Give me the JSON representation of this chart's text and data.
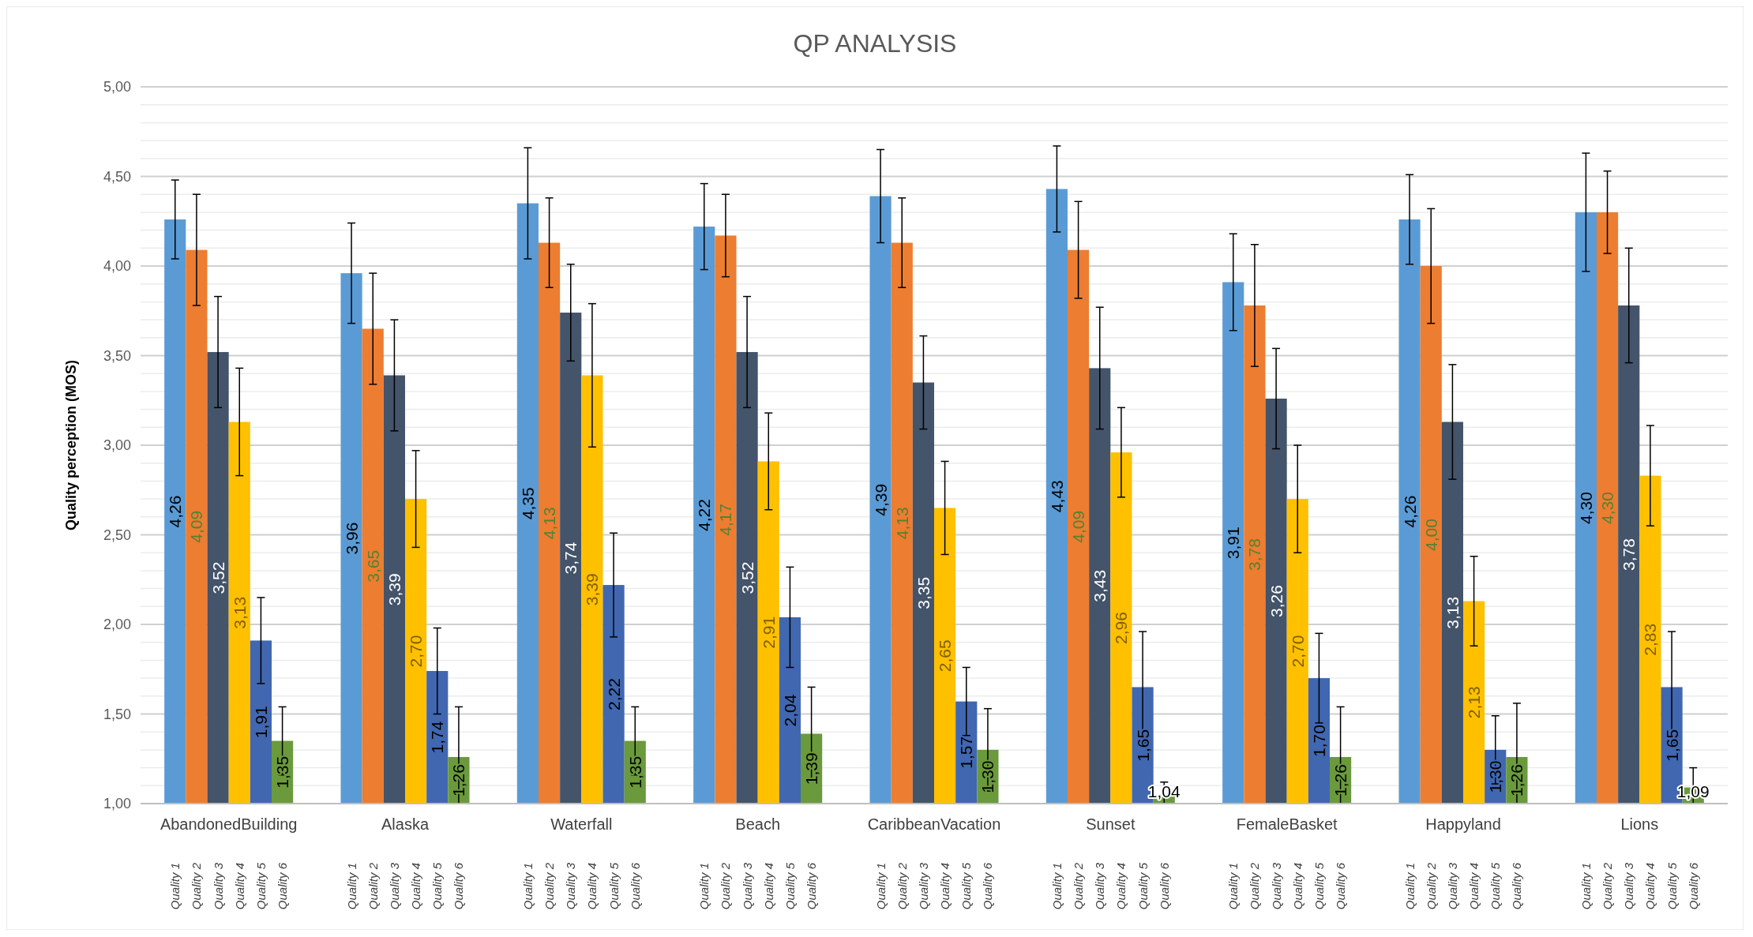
{
  "chart_data": {
    "type": "bar",
    "title": "QP ANALYSIS",
    "ylabel": "Quality perception (MOS)",
    "categories": [
      "AbandonedBuilding",
      "Alaska",
      "Waterfall",
      "Beach",
      "CaribbeanVacation",
      "Sunset",
      "FemaleBasket",
      "Happyland",
      "Lions"
    ],
    "series": [
      {
        "name": "Quality 1",
        "color": "#5b9bd5",
        "values": [
          4.26,
          3.96,
          4.35,
          4.22,
          4.39,
          4.43,
          3.91,
          4.26,
          4.3
        ],
        "errors": [
          0.22,
          0.28,
          0.31,
          0.24,
          0.26,
          0.24,
          0.27,
          0.25,
          0.33
        ],
        "value_labels": [
          "4,26",
          "3,96",
          "4,35",
          "4,22",
          "4,39",
          "4,43",
          "3,91",
          "4,26",
          "4,30"
        ]
      },
      {
        "name": "Quality 2",
        "color": "#ed7d31",
        "values": [
          4.09,
          3.65,
          4.13,
          4.17,
          4.13,
          4.09,
          3.78,
          4.0,
          4.3
        ],
        "errors": [
          0.31,
          0.31,
          0.25,
          0.23,
          0.25,
          0.27,
          0.34,
          0.32,
          0.23
        ],
        "value_labels": [
          "4,09",
          "3,65",
          "4,13",
          "4,17",
          "4,13",
          "4,09",
          "3,78",
          "4,00",
          "4,30"
        ]
      },
      {
        "name": "Quality 3",
        "color": "#44546a",
        "values": [
          3.52,
          3.39,
          3.74,
          3.52,
          3.35,
          3.43,
          3.26,
          3.13,
          3.78
        ],
        "errors": [
          0.31,
          0.31,
          0.27,
          0.31,
          0.26,
          0.34,
          0.28,
          0.32,
          0.32
        ],
        "value_labels": [
          "3,52",
          "3,39",
          "3,74",
          "3,52",
          "3,35",
          "3,43",
          "3,26",
          "3,13",
          "3,78"
        ]
      },
      {
        "name": "Quality 4",
        "color": "#ffc000",
        "values": [
          3.13,
          2.7,
          3.39,
          2.91,
          2.65,
          2.96,
          2.7,
          2.13,
          2.83
        ],
        "errors": [
          0.3,
          0.27,
          0.4,
          0.27,
          0.26,
          0.25,
          0.3,
          0.25,
          0.28
        ],
        "value_labels": [
          "3,13",
          "2,70",
          "3,39",
          "2,91",
          "2,65",
          "2,96",
          "2,70",
          "2,13",
          "2,83"
        ]
      },
      {
        "name": "Quality 5",
        "color": "#4167b0",
        "values": [
          1.91,
          1.74,
          2.22,
          2.04,
          1.57,
          1.65,
          1.7,
          1.3,
          1.65
        ],
        "errors": [
          0.24,
          0.24,
          0.29,
          0.28,
          0.19,
          0.31,
          0.25,
          0.19,
          0.31
        ],
        "value_labels": [
          "1,91",
          "1,74",
          "2,22",
          "2,04",
          "1,57",
          "1,65",
          "1,70",
          "1,30",
          "1,65"
        ]
      },
      {
        "name": "Quality 6",
        "color": "#6a9a3c",
        "values": [
          1.35,
          1.26,
          1.35,
          1.39,
          1.3,
          1.04,
          1.26,
          1.26,
          1.09
        ],
        "errors": [
          0.19,
          [
            1.0,
            1.54
          ],
          0.19,
          0.26,
          0.23,
          [
            1.0,
            1.12
          ],
          [
            1.0,
            1.54
          ],
          [
            1.0,
            1.56
          ],
          [
            1.0,
            1.2
          ]
        ],
        "value_labels": [
          "1,35",
          "1,26",
          "1,35",
          "1,39",
          "1,30",
          "1,04",
          "1,26",
          "1,26",
          "1,09"
        ]
      }
    ],
    "ylim": [
      1,
      5
    ],
    "yticks": [
      {
        "value": 1,
        "label": "1,00"
      },
      {
        "value": 1.1,
        "label": null
      },
      {
        "value": 1.2,
        "label": null
      },
      {
        "value": 1.3,
        "label": null
      },
      {
        "value": 1.4,
        "label": null
      },
      {
        "value": 1.5,
        "label": "1,50"
      },
      {
        "value": 1.6,
        "label": null
      },
      {
        "value": 1.7,
        "label": null
      },
      {
        "value": 1.8,
        "label": null
      },
      {
        "value": 1.9,
        "label": null
      },
      {
        "value": 2,
        "label": "2,00"
      },
      {
        "value": 2.1,
        "label": null
      },
      {
        "value": 2.2,
        "label": null
      },
      {
        "value": 2.3,
        "label": null
      },
      {
        "value": 2.4,
        "label": null
      },
      {
        "value": 2.5,
        "label": "2,50"
      },
      {
        "value": 2.6,
        "label": null
      },
      {
        "value": 2.7,
        "label": null
      },
      {
        "value": 2.8,
        "label": null
      },
      {
        "value": 2.9,
        "label": null
      },
      {
        "value": 3,
        "label": "3,00"
      },
      {
        "value": 3.1,
        "label": null
      },
      {
        "value": 3.2,
        "label": null
      },
      {
        "value": 3.3,
        "label": null
      },
      {
        "value": 3.4,
        "label": null
      },
      {
        "value": 3.5,
        "label": "3,50"
      },
      {
        "value": 3.6,
        "label": null
      },
      {
        "value": 3.7,
        "label": null
      },
      {
        "value": 3.8,
        "label": null
      },
      {
        "value": 3.9,
        "label": null
      },
      {
        "value": 4,
        "label": "4,00"
      },
      {
        "value": 4.1,
        "label": null
      },
      {
        "value": 4.2,
        "label": null
      },
      {
        "value": 4.3,
        "label": null
      },
      {
        "value": 4.4,
        "label": null
      },
      {
        "value": 4.5,
        "label": "4,50"
      },
      {
        "value": 4.6,
        "label": null
      },
      {
        "value": 4.7,
        "label": null
      },
      {
        "value": 4.8,
        "label": null
      },
      {
        "value": 4.9,
        "label": null
      },
      {
        "value": 5,
        "label": "5,00"
      }
    ],
    "grid": true,
    "legend": false
  }
}
